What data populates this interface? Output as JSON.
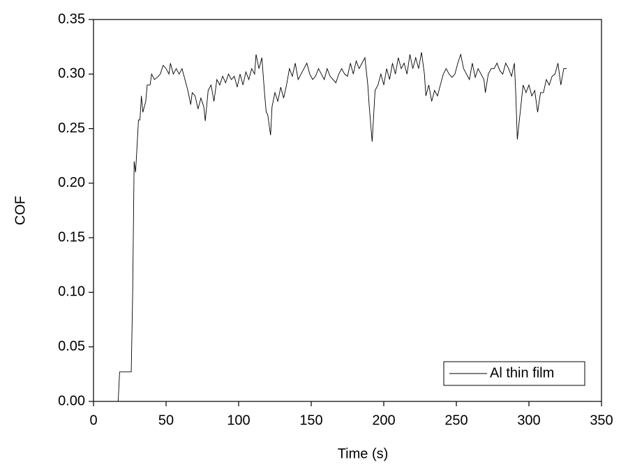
{
  "chart_data": {
    "type": "line",
    "xlabel": "Time (s)",
    "ylabel": "COF",
    "xlim": [
      0,
      350
    ],
    "xticks": [
      0,
      50,
      100,
      150,
      200,
      250,
      300,
      350
    ],
    "ylim": [
      0,
      0.35
    ],
    "yticks": [
      {
        "value": 0,
        "label": "0.00"
      },
      {
        "value": 0.05,
        "label": "0.05"
      },
      {
        "value": 0.1,
        "label": "0.10"
      },
      {
        "value": 0.15,
        "label": "0.15"
      },
      {
        "value": 0.2,
        "label": "0.20"
      },
      {
        "value": 0.25,
        "label": "0.25"
      },
      {
        "value": 0.3,
        "label": "0.30"
      },
      {
        "value": 0.35,
        "label": "0.35"
      }
    ],
    "legend": "lower right",
    "x": [
      17,
      18,
      26,
      27,
      28,
      29,
      31,
      32,
      33,
      34,
      36,
      37,
      39,
      40,
      42,
      44,
      46,
      48,
      50,
      52,
      53,
      55,
      57,
      59,
      61,
      63,
      65,
      67,
      68,
      70,
      72,
      74,
      76,
      77,
      79,
      81,
      83,
      85,
      87,
      89,
      91,
      93,
      95,
      97,
      99,
      101,
      103,
      105,
      107,
      109,
      111,
      112,
      114,
      116,
      118,
      119,
      120,
      122,
      123,
      125,
      127,
      129,
      131,
      133,
      135,
      137,
      139,
      141,
      143,
      145,
      147,
      149,
      151,
      153,
      155,
      157,
      159,
      161,
      163,
      165,
      167,
      169,
      171,
      173,
      175,
      177,
      179,
      181,
      183,
      185,
      187,
      189,
      190,
      192,
      194,
      196,
      198,
      200,
      202,
      204,
      206,
      208,
      210,
      212,
      214,
      216,
      218,
      220,
      222,
      224,
      226,
      228,
      229,
      231,
      233,
      235,
      237,
      239,
      241,
      243,
      245,
      247,
      249,
      251,
      253,
      255,
      257,
      259,
      261,
      263,
      265,
      267,
      269,
      270,
      272,
      274,
      276,
      278,
      280,
      282,
      284,
      286,
      288,
      290,
      291,
      292,
      294,
      296,
      298,
      300,
      302,
      304,
      306,
      308,
      310,
      312,
      314,
      316,
      318,
      320,
      322,
      324,
      326
    ],
    "series": [
      {
        "name": "Al thin film",
        "color": "#000000",
        "values": [
          0,
          0.027,
          0.027,
          0.1,
          0.22,
          0.21,
          0.258,
          0.258,
          0.28,
          0.265,
          0.275,
          0.29,
          0.29,
          0.3,
          0.295,
          0.297,
          0.3,
          0.308,
          0.305,
          0.3,
          0.31,
          0.3,
          0.305,
          0.3,
          0.305,
          0.295,
          0.285,
          0.272,
          0.283,
          0.28,
          0.268,
          0.278,
          0.27,
          0.257,
          0.285,
          0.29,
          0.275,
          0.295,
          0.29,
          0.298,
          0.292,
          0.3,
          0.295,
          0.298,
          0.288,
          0.3,
          0.29,
          0.302,
          0.295,
          0.305,
          0.3,
          0.318,
          0.305,
          0.315,
          0.28,
          0.265,
          0.263,
          0.244,
          0.27,
          0.283,
          0.275,
          0.288,
          0.278,
          0.29,
          0.305,
          0.298,
          0.31,
          0.295,
          0.3,
          0.305,
          0.31,
          0.3,
          0.295,
          0.298,
          0.305,
          0.3,
          0.295,
          0.305,
          0.298,
          0.295,
          0.292,
          0.3,
          0.305,
          0.3,
          0.298,
          0.31,
          0.3,
          0.312,
          0.305,
          0.31,
          0.315,
          0.29,
          0.27,
          0.238,
          0.285,
          0.29,
          0.3,
          0.29,
          0.305,
          0.295,
          0.31,
          0.3,
          0.315,
          0.305,
          0.31,
          0.3,
          0.318,
          0.305,
          0.315,
          0.305,
          0.32,
          0.3,
          0.28,
          0.29,
          0.275,
          0.285,
          0.28,
          0.29,
          0.3,
          0.305,
          0.3,
          0.297,
          0.3,
          0.31,
          0.318,
          0.305,
          0.3,
          0.295,
          0.31,
          0.297,
          0.305,
          0.3,
          0.295,
          0.283,
          0.3,
          0.305,
          0.305,
          0.31,
          0.303,
          0.3,
          0.31,
          0.305,
          0.298,
          0.31,
          0.28,
          0.24,
          0.265,
          0.29,
          0.283,
          0.29,
          0.28,
          0.285,
          0.265,
          0.283,
          0.283,
          0.295,
          0.29,
          0.298,
          0.3,
          0.31,
          0.29,
          0.305,
          0.305
        ]
      }
    ]
  }
}
